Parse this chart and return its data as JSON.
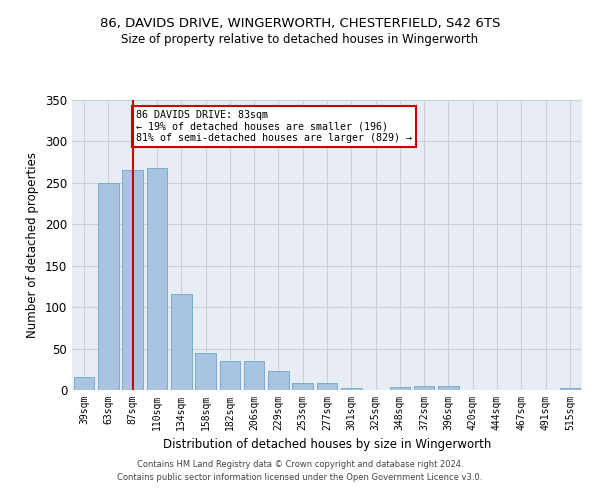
{
  "title_line1": "86, DAVIDS DRIVE, WINGERWORTH, CHESTERFIELD, S42 6TS",
  "title_line2": "Size of property relative to detached houses in Wingerworth",
  "xlabel": "Distribution of detached houses by size in Wingerworth",
  "ylabel": "Number of detached properties",
  "categories": [
    "39sqm",
    "63sqm",
    "87sqm",
    "110sqm",
    "134sqm",
    "158sqm",
    "182sqm",
    "206sqm",
    "229sqm",
    "253sqm",
    "277sqm",
    "301sqm",
    "325sqm",
    "348sqm",
    "372sqm",
    "396sqm",
    "420sqm",
    "444sqm",
    "467sqm",
    "491sqm",
    "515sqm"
  ],
  "values": [
    16,
    250,
    265,
    268,
    116,
    45,
    35,
    35,
    23,
    9,
    9,
    3,
    0,
    4,
    5,
    5,
    0,
    0,
    0,
    0,
    3
  ],
  "bar_color": "#a8c4e0",
  "bar_edge_color": "#7aaccc",
  "vline_x": 2,
  "vline_color": "#cc0000",
  "annotation_text": "86 DAVIDS DRIVE: 83sqm\n← 19% of detached houses are smaller (196)\n81% of semi-detached houses are larger (829) →",
  "annotation_box_color": "#ffffff",
  "annotation_box_edge": "#cc0000",
  "ylim": [
    0,
    350
  ],
  "yticks": [
    0,
    50,
    100,
    150,
    200,
    250,
    300,
    350
  ],
  "grid_color": "#c8d0dc",
  "bg_color": "#e8edf5",
  "footer_line1": "Contains HM Land Registry data © Crown copyright and database right 2024.",
  "footer_line2": "Contains public sector information licensed under the Open Government Licence v3.0."
}
